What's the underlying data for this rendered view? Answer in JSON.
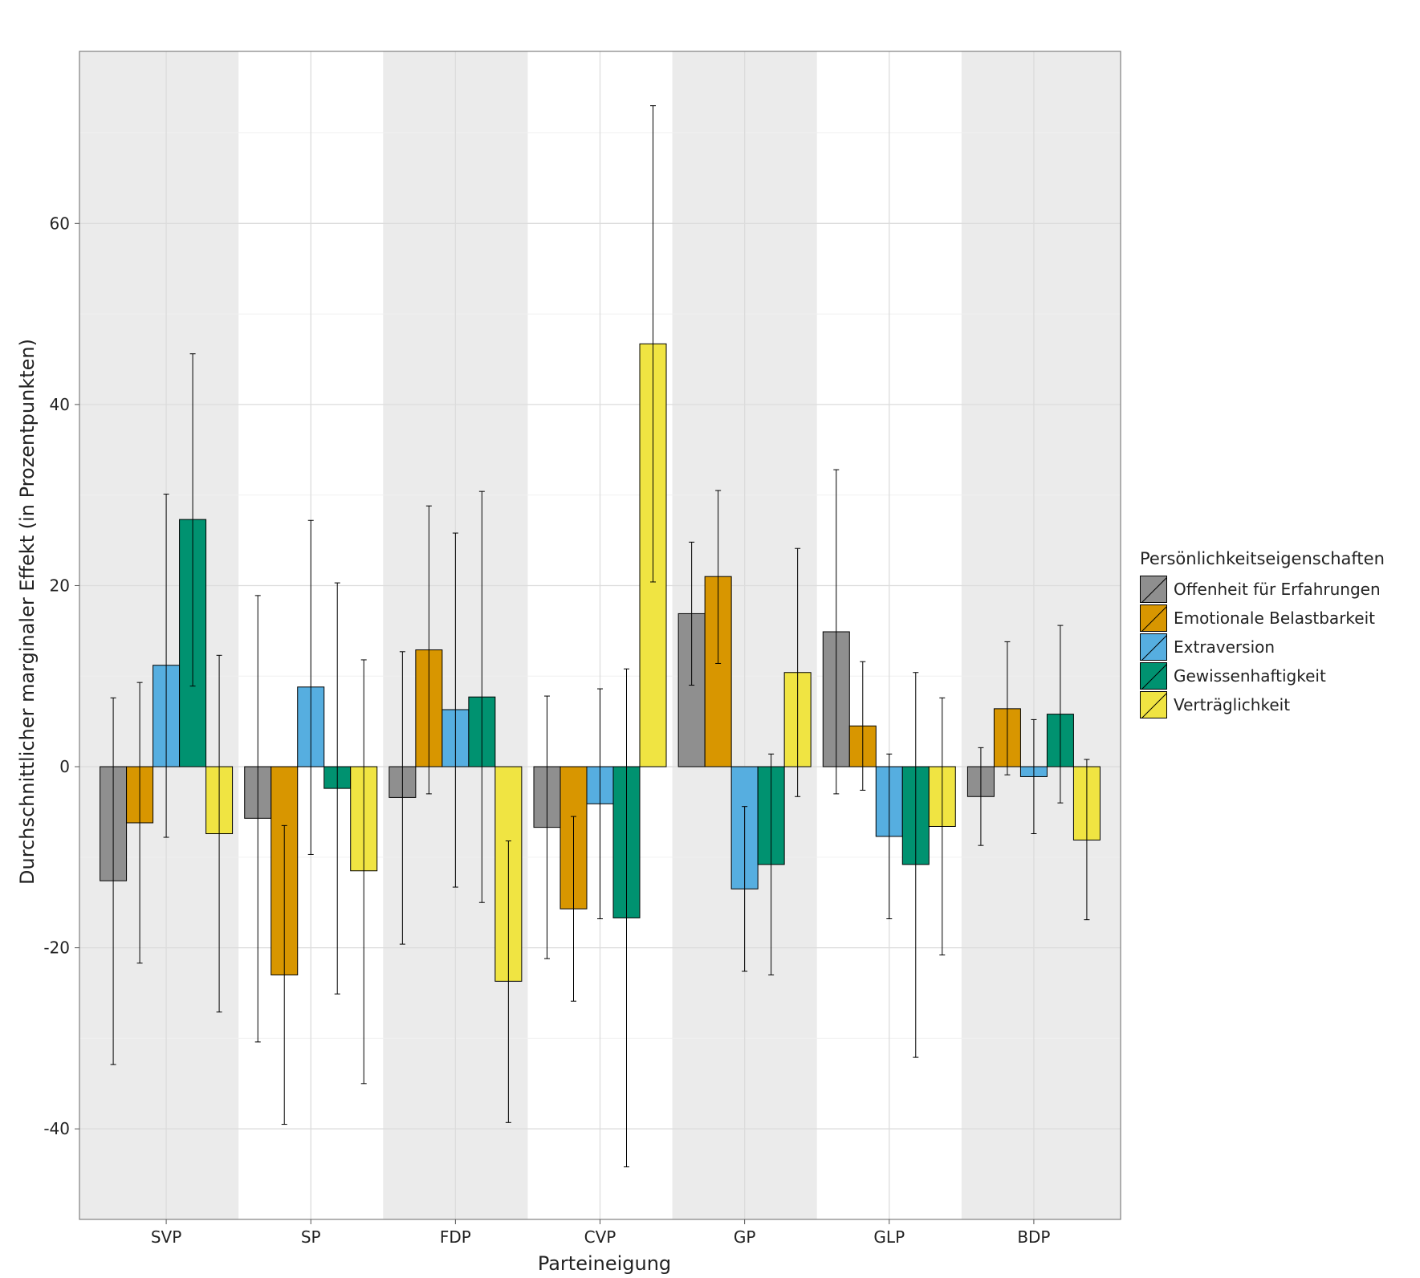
{
  "chart_data": {
    "type": "bar",
    "xlabel": "Parteineigung",
    "ylabel": "Durchschnittlicher marginaler Effekt (in Prozentpunkten)",
    "ylim": [
      -50,
      79
    ],
    "yticks": [
      -40,
      -20,
      0,
      20,
      40,
      60
    ],
    "grid": true,
    "legend_position": "right",
    "legend_title": "Persönlichkeitseigenschaften",
    "categories": [
      "SVP",
      "SP",
      "FDP",
      "CVP",
      "GP",
      "GLP",
      "BDP"
    ],
    "series": [
      {
        "name": "Offenheit für Erfahrungen",
        "color": "#8f8f8f",
        "values": [
          -12.6,
          -5.7,
          -3.4,
          -6.7,
          16.9,
          14.9,
          -3.3
        ],
        "ci_low": [
          -32.9,
          -30.4,
          -19.6,
          -21.2,
          9.0,
          -3.0,
          -8.7
        ],
        "ci_high": [
          7.6,
          18.9,
          12.7,
          7.8,
          24.8,
          32.8,
          2.1
        ]
      },
      {
        "name": "Emotionale Belastbarkeit",
        "color": "#d89600",
        "values": [
          -6.2,
          -23.0,
          12.9,
          -15.7,
          21.0,
          4.5,
          6.4
        ],
        "ci_low": [
          -21.7,
          -39.5,
          -3.0,
          -25.9,
          11.4,
          -2.6,
          -0.9
        ],
        "ci_high": [
          9.3,
          -6.5,
          28.8,
          -5.5,
          30.5,
          11.6,
          13.8
        ]
      },
      {
        "name": "Extraversion",
        "color": "#56aee0",
        "values": [
          11.2,
          8.8,
          6.3,
          -4.1,
          -13.5,
          -7.7,
          -1.1
        ],
        "ci_low": [
          -7.8,
          -9.7,
          -13.3,
          -16.8,
          -22.6,
          -16.8,
          -7.4
        ],
        "ci_high": [
          30.1,
          27.2,
          25.8,
          8.6,
          -4.4,
          1.4,
          5.2
        ]
      },
      {
        "name": "Gewissenhaftigkeit",
        "color": "#009270",
        "values": [
          27.3,
          -2.4,
          7.7,
          -16.7,
          -10.8,
          -10.8,
          5.8
        ],
        "ci_low": [
          8.9,
          -25.1,
          -15.0,
          -44.2,
          -23.0,
          -32.1,
          -4.0
        ],
        "ci_high": [
          45.6,
          20.3,
          30.4,
          10.8,
          1.4,
          10.4,
          15.6
        ]
      },
      {
        "name": "Verträglichkeit",
        "color": "#f0e442",
        "values": [
          -7.4,
          -11.5,
          -23.7,
          46.7,
          10.4,
          -6.6,
          -8.1
        ],
        "ci_low": [
          -27.1,
          -35.0,
          -39.3,
          20.4,
          -3.3,
          -20.8,
          -16.9
        ],
        "ci_high": [
          12.3,
          11.8,
          -8.2,
          73.0,
          24.1,
          7.6,
          0.8
        ]
      }
    ]
  }
}
